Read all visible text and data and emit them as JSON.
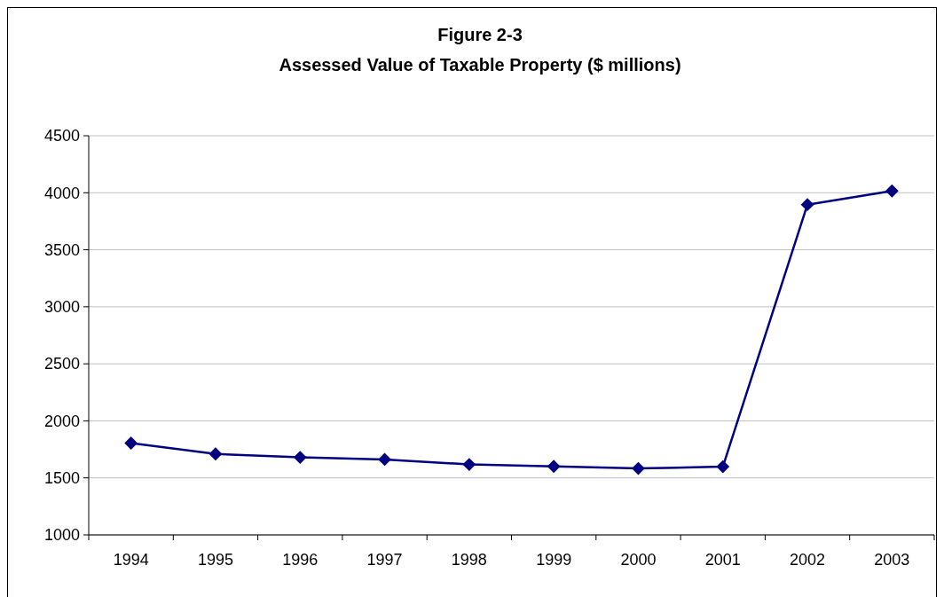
{
  "chart_data": {
    "type": "line",
    "title": "Figure 2-3\nAssessed Value of Taxable Property ($ millions)",
    "categories": [
      "1994",
      "1995",
      "1996",
      "1997",
      "1998",
      "1999",
      "2000",
      "2001",
      "2002",
      "2003"
    ],
    "series": [
      {
        "color": "#000080",
        "values": [
          1805,
          1710,
          1680,
          1662,
          1618,
          1601,
          1583,
          1598,
          3896,
          4016
        ]
      }
    ],
    "ylim": [
      1000,
      4500
    ],
    "yticks": [
      1000,
      1500,
      2000,
      2500,
      3000,
      3500,
      4000,
      4500
    ],
    "grid": "y",
    "marker": "diamond",
    "line_style": "solid"
  }
}
